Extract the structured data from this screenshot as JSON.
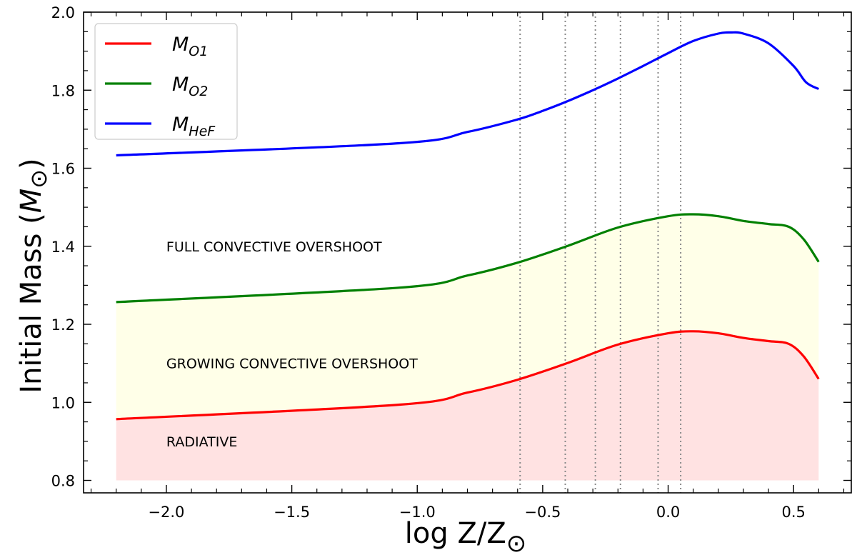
{
  "chart_data": {
    "type": "line",
    "xlabel_main": "log Z/Z",
    "xlabel_sym": "⊙",
    "ylabel_main": "Initial Mass (",
    "ylabel_italic": "M",
    "ylabel_sym": "⊙",
    "ylabel_end": ")",
    "xlim": [
      -2.33,
      0.73
    ],
    "ylim": [
      0.768,
      2.0
    ],
    "xticks": [
      -2.0,
      -1.5,
      -1.0,
      -0.5,
      0.0,
      0.5
    ],
    "xtick_labels": [
      "−2.0",
      "−1.5",
      "−1.0",
      "−0.5",
      "0.0",
      "0.5"
    ],
    "yticks": [
      0.8,
      1.0,
      1.2,
      1.4,
      1.6,
      1.8,
      2.0
    ],
    "ytick_labels": [
      "0.8",
      "1.0",
      "1.2",
      "1.4",
      "1.6",
      "1.8",
      "2.0"
    ],
    "vlines": [
      -0.59,
      -0.41,
      -0.29,
      -0.19,
      -0.04,
      0.05
    ],
    "series": [
      {
        "name": "M_O1",
        "label_main": "M",
        "label_sub": "O1",
        "color": "#ff0000",
        "x": [
          -2.2,
          -1.07,
          -0.8,
          -0.6,
          -0.4,
          -0.2,
          0.0,
          0.1,
          0.2,
          0.3,
          0.4,
          0.48,
          0.54,
          0.6
        ],
        "y": [
          0.957,
          0.994,
          1.025,
          1.058,
          1.101,
          1.148,
          1.177,
          1.182,
          1.177,
          1.165,
          1.157,
          1.15,
          1.118,
          1.06
        ]
      },
      {
        "name": "M_O2",
        "label_main": "M",
        "label_sub": "O2",
        "color": "#008000",
        "x": [
          -2.2,
          -1.07,
          -0.8,
          -0.6,
          -0.4,
          -0.2,
          0.0,
          0.1,
          0.2,
          0.3,
          0.4,
          0.48,
          0.54,
          0.6
        ],
        "y": [
          1.257,
          1.294,
          1.325,
          1.358,
          1.401,
          1.448,
          1.477,
          1.482,
          1.477,
          1.465,
          1.457,
          1.45,
          1.418,
          1.36
        ]
      },
      {
        "name": "M_HeF",
        "label_main": "M",
        "label_sub": "HeF",
        "color": "#0000ff",
        "x": [
          -2.2,
          -1.07,
          -0.8,
          -0.6,
          -0.5,
          -0.4,
          -0.3,
          -0.2,
          -0.1,
          0.0,
          0.1,
          0.2,
          0.25,
          0.3,
          0.4,
          0.5,
          0.55,
          0.6
        ],
        "y": [
          1.633,
          1.664,
          1.693,
          1.725,
          1.747,
          1.772,
          1.8,
          1.83,
          1.862,
          1.895,
          1.926,
          1.945,
          1.948,
          1.945,
          1.92,
          1.862,
          1.82,
          1.803
        ]
      }
    ],
    "fills": [
      {
        "lower": "floor",
        "upper": "M_O1",
        "color": "#ffe2e2"
      },
      {
        "lower": "M_O1",
        "upper": "M_O2",
        "color": "#ffffe8"
      }
    ],
    "fill_floor": 0.8,
    "annotations": [
      {
        "text": "FULL CONVECTIVE OVERSHOOT",
        "x": -2.0,
        "y": 1.4
      },
      {
        "text": "GROWING CONVECTIVE OVERSHOOT",
        "x": -2.0,
        "y": 1.1
      },
      {
        "text": "RADIATIVE",
        "x": -2.0,
        "y": 0.9
      }
    ],
    "legend_loc": "upper left",
    "grid": false
  }
}
